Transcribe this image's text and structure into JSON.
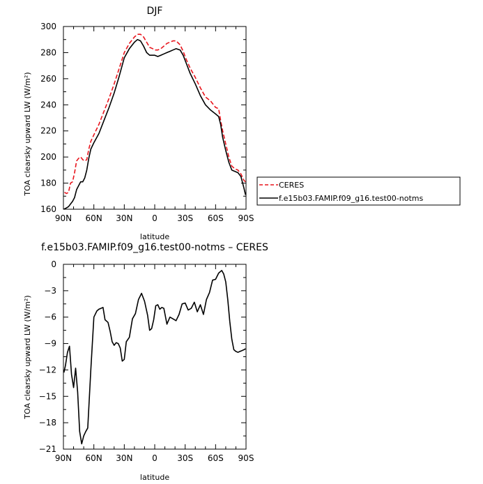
{
  "chart_data": [
    {
      "type": "line",
      "title": "DJF",
      "xlabel": "latitude",
      "ylabel": "TOA clearsky upward LW (W/m²)",
      "xlim": [
        90,
        -90
      ],
      "ylim": [
        160,
        300
      ],
      "xticks": [
        90,
        60,
        30,
        0,
        -30,
        -60,
        -90
      ],
      "xtick_labels": [
        "90N",
        "60N",
        "30N",
        "0",
        "30S",
        "60S",
        "90S"
      ],
      "yticks": [
        160,
        180,
        200,
        220,
        240,
        260,
        280,
        300
      ],
      "ytick_labels": [
        "160",
        "180",
        "200",
        "220",
        "240",
        "260",
        "280",
        "300"
      ],
      "legend_position": "right",
      "series": [
        {
          "name": "CERES",
          "color": "#e8141c",
          "dash": "dashed",
          "x": [
            89,
            87,
            85,
            83,
            81,
            79,
            77,
            75,
            73,
            71,
            69,
            67,
            65,
            63,
            60,
            55,
            50,
            45,
            40,
            35,
            30,
            25,
            20,
            17,
            14,
            11,
            8,
            5,
            2,
            0,
            -3,
            -6,
            -9,
            -12,
            -15,
            -18,
            -21,
            -25,
            -28,
            -31,
            -35,
            -40,
            -45,
            -50,
            -55,
            -60,
            -63,
            -65,
            -67,
            -70,
            -73,
            -76,
            -79,
            -82,
            -85,
            -88,
            -89.5
          ],
          "y": [
            173,
            172,
            173,
            180,
            181,
            188,
            197,
            199,
            200,
            198,
            197,
            198,
            206,
            212,
            217,
            225,
            235,
            245,
            256,
            268,
            280,
            287,
            292,
            294,
            294,
            292,
            288,
            284,
            283,
            282,
            282,
            283,
            285,
            287,
            288,
            289,
            289,
            286,
            281,
            275,
            268,
            261,
            253,
            246,
            243,
            238,
            237,
            228,
            220,
            210,
            200,
            193,
            191,
            190,
            187,
            182,
            181
          ]
        },
        {
          "name": "f.e15b03.FAMIP.f09_g16.test00-notms",
          "color": "#000000",
          "dash": "solid",
          "x": [
            89.5,
            87,
            85,
            83,
            81,
            79,
            77,
            75,
            73,
            71,
            69,
            67,
            65,
            63,
            60,
            55,
            50,
            45,
            40,
            35,
            30,
            25,
            20,
            17,
            14,
            11,
            8,
            5,
            2,
            0,
            -3,
            -6,
            -9,
            -12,
            -15,
            -18,
            -21,
            -25,
            -28,
            -31,
            -35,
            -40,
            -45,
            -50,
            -55,
            -60,
            -63,
            -65,
            -67,
            -70,
            -73,
            -76,
            -79,
            -82,
            -85,
            -88,
            -89.5
          ],
          "y": [
            160,
            161,
            162,
            164,
            166,
            169,
            175,
            178,
            181,
            181,
            184,
            190,
            199,
            206,
            211,
            218,
            228,
            238,
            249,
            262,
            276,
            283,
            288,
            290,
            289,
            285,
            280,
            278,
            278,
            278,
            277,
            278,
            279,
            280,
            281,
            282,
            283,
            282,
            278,
            272,
            264,
            256,
            247,
            240,
            236,
            233,
            231,
            225,
            215,
            205,
            196,
            190,
            189,
            188,
            185,
            176,
            171
          ]
        }
      ]
    },
    {
      "type": "line",
      "title": "f.e15b03.FAMIP.f09_g16.test00-notms – CERES",
      "xlabel": "latitude",
      "ylabel": "TOA clearsky upward LW (W/m²)",
      "xlim": [
        90,
        -90
      ],
      "ylim": [
        -21,
        0
      ],
      "xticks": [
        90,
        60,
        30,
        0,
        -30,
        -60,
        -90
      ],
      "xtick_labels": [
        "90N",
        "60N",
        "30N",
        "0",
        "30S",
        "60S",
        "90S"
      ],
      "yticks": [
        -21,
        -18,
        -15,
        -12,
        -9,
        -6,
        -3,
        0
      ],
      "ytick_labels": [
        "−21",
        "−18",
        "−15",
        "−12",
        "−9",
        "−6",
        "−3",
        "0"
      ],
      "series": [
        {
          "name": "",
          "color": "#000000",
          "dash": "solid",
          "x": [
            89.5,
            88,
            86,
            84,
            82,
            80,
            78,
            76,
            74,
            72,
            70,
            68,
            66,
            63,
            60,
            57,
            55,
            53,
            51,
            49,
            46,
            44,
            42,
            40,
            38,
            36,
            34,
            32,
            30,
            28,
            25,
            22,
            19,
            16,
            13,
            10,
            7,
            5,
            3,
            1,
            -1,
            -3,
            -5,
            -7,
            -9,
            -12,
            -15,
            -18,
            -21,
            -24,
            -27,
            -30,
            -33,
            -36,
            -39,
            -42,
            -45,
            -48,
            -51,
            -54,
            -57,
            -60,
            -63,
            -66,
            -68,
            -70,
            -72,
            -74,
            -76,
            -78,
            -80,
            -82,
            -84,
            -86,
            -88,
            -89.5
          ],
          "y": [
            -12.3,
            -11.5,
            -10.0,
            -9.3,
            -12.5,
            -14.0,
            -11.8,
            -14.5,
            -19.0,
            -20.4,
            -19.5,
            -19.0,
            -18.6,
            -12.0,
            -6.0,
            -5.3,
            -5.1,
            -5.0,
            -4.9,
            -6.3,
            -6.6,
            -7.6,
            -8.8,
            -9.2,
            -8.9,
            -9.0,
            -9.5,
            -11.0,
            -10.8,
            -8.8,
            -8.3,
            -6.2,
            -5.6,
            -4.0,
            -3.3,
            -4.2,
            -5.8,
            -7.5,
            -7.3,
            -6.3,
            -4.7,
            -4.6,
            -5.1,
            -4.9,
            -5.0,
            -6.8,
            -6.0,
            -6.2,
            -6.4,
            -5.7,
            -4.5,
            -4.4,
            -5.2,
            -5.0,
            -4.3,
            -5.4,
            -4.6,
            -5.7,
            -4.0,
            -3.2,
            -1.8,
            -1.7,
            -1.0,
            -0.7,
            -1.1,
            -2.0,
            -4.0,
            -6.5,
            -8.5,
            -9.7,
            -9.9,
            -10.0,
            -9.9,
            -9.8,
            -9.7,
            -9.6
          ]
        }
      ]
    }
  ]
}
